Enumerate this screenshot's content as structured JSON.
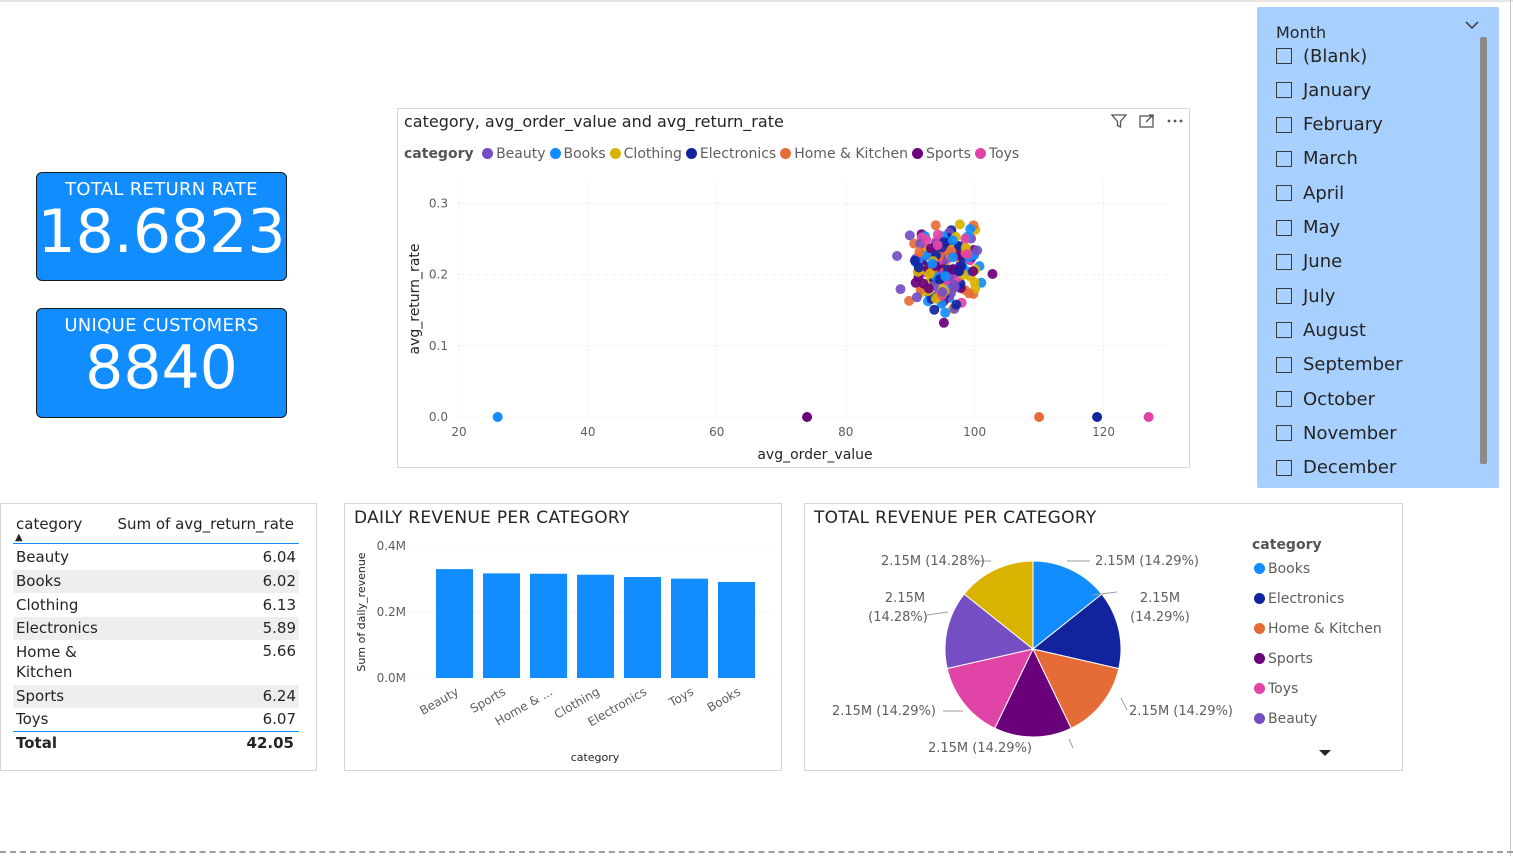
{
  "kpis": {
    "return_rate": {
      "title": "TOTAL RETURN RATE",
      "value": "18.6823"
    },
    "customers": {
      "title": "UNIQUE CUSTOMERS",
      "value": "8840"
    }
  },
  "scatter": {
    "title": "category, avg_order_value and avg_return_rate",
    "legend_title": "category",
    "xlabel": "avg_order_value",
    "ylabel": "avg_return_rate",
    "icons": [
      "filter-icon",
      "focus-mode-icon",
      "more-options-icon"
    ]
  },
  "slicer": {
    "header": "Month",
    "items": [
      "(Blank)",
      "January",
      "February",
      "March",
      "April",
      "May",
      "June",
      "July",
      "August",
      "September",
      "October",
      "November",
      "December"
    ]
  },
  "table": {
    "col1": "category",
    "col2": "Sum of avg_return_rate",
    "rows": [
      {
        "category": "Beauty",
        "value": "6.04"
      },
      {
        "category": "Books",
        "value": "6.02"
      },
      {
        "category": "Clothing",
        "value": "6.13"
      },
      {
        "category": "Electronics",
        "value": "5.89"
      },
      {
        "category": "Home & Kitchen",
        "value": "5.66"
      },
      {
        "category": "Sports",
        "value": "6.24"
      },
      {
        "category": "Toys",
        "value": "6.07"
      }
    ],
    "total_label": "Total",
    "total_value": "42.05"
  },
  "bar": {
    "title": "DAILY REVENUE PER CATEGORY",
    "xlabel": "category",
    "ylabel": "Sum of daily_revenue"
  },
  "pie": {
    "title": "TOTAL REVENUE PER CATEGORY",
    "legend_title": "category",
    "legend_order": [
      "Books",
      "Electronics",
      "Home & Kitchen",
      "Sports",
      "Toys",
      "Beauty"
    ],
    "labels": [
      "2.15M (14.29%)",
      "2.15M",
      "(14.29%)",
      "2.15M (14.29%)",
      "2.15M (14.29%)",
      "2.15M (14.29%)",
      "2.15M",
      "(14.28%)",
      "2.15M (14.28%)"
    ]
  },
  "colors": {
    "Beauty": "#744ec2",
    "Books": "#118dff",
    "Clothing": "#d9b300",
    "Electronics": "#12239e",
    "Home & Kitchen": "#e66c37",
    "Sports": "#6b007b",
    "Toys": "#e044a7",
    "kpi_bg": "#118dff",
    "slicer_bg": "#a7d0ff"
  },
  "chart_data": [
    {
      "type": "scatter",
      "title": "category, avg_order_value and avg_return_rate",
      "xlabel": "avg_order_value",
      "ylabel": "avg_return_rate",
      "xlim": [
        20,
        130
      ],
      "ylim": [
        0,
        0.33
      ],
      "xticks": [
        "20",
        "40",
        "60",
        "80",
        "100",
        "120"
      ],
      "yticks": [
        "0.0",
        "0.1",
        "0.2",
        "0.3"
      ],
      "grid": true,
      "legend": "top",
      "categories": [
        "Beauty",
        "Books",
        "Clothing",
        "Electronics",
        "Home & Kitchen",
        "Sports",
        "Toys"
      ],
      "cluster": {
        "x_range": [
          85,
          108
        ],
        "y_range": [
          0.08,
          0.34
        ],
        "approx_points": 200
      },
      "outliers": [
        {
          "category": "Books",
          "x": 26,
          "y": 0.0
        },
        {
          "category": "Sports",
          "x": 74,
          "y": 0.0
        },
        {
          "category": "Home & Kitchen",
          "x": 110,
          "y": 0.0
        },
        {
          "category": "Electronics",
          "x": 119,
          "y": 0.0
        },
        {
          "category": "Toys",
          "x": 127,
          "y": 0.0
        }
      ]
    },
    {
      "type": "bar",
      "title": "DAILY REVENUE PER CATEGORY",
      "xlabel": "category",
      "ylabel": "Sum of daily_revenue",
      "categories": [
        "Beauty",
        "Sports",
        "Home & ...",
        "Clothing",
        "Electronics",
        "Toys",
        "Books"
      ],
      "values": [
        0.33,
        0.317,
        0.316,
        0.313,
        0.306,
        0.301,
        0.291
      ],
      "units": "M",
      "ylim": [
        0,
        0.4
      ],
      "yticks": [
        "0.0M",
        "0.2M",
        "0.4M"
      ],
      "color": "#118dff"
    },
    {
      "type": "pie",
      "title": "TOTAL REVENUE PER CATEGORY",
      "slices": [
        {
          "name": "Books",
          "value": 2.15,
          "percent": 14.29
        },
        {
          "name": "Electronics",
          "value": 2.15,
          "percent": 14.29
        },
        {
          "name": "Home & Kitchen",
          "value": 2.15,
          "percent": 14.29
        },
        {
          "name": "Sports",
          "value": 2.15,
          "percent": 14.29
        },
        {
          "name": "Toys",
          "value": 2.15,
          "percent": 14.29
        },
        {
          "name": "Beauty",
          "value": 2.15,
          "percent": 14.28
        },
        {
          "name": "Clothing",
          "value": 2.15,
          "percent": 14.28
        }
      ],
      "legend": "right"
    }
  ]
}
